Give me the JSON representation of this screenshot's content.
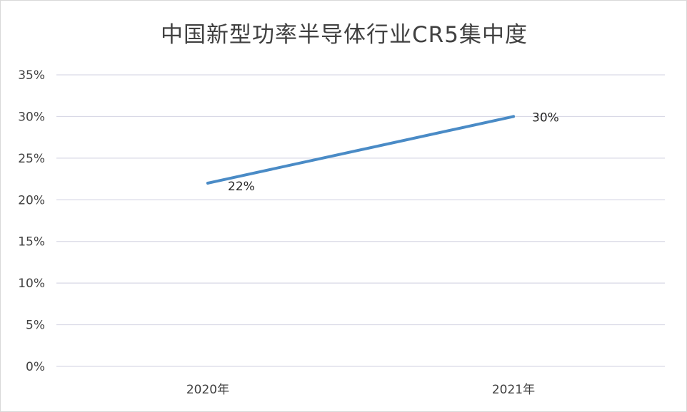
{
  "chart_data": {
    "type": "line",
    "title": "中国新型功率半导体行业CR5集中度",
    "categories": [
      "2020年",
      "2021年"
    ],
    "series": [
      {
        "values": [
          22,
          30
        ],
        "data_labels": [
          "22%",
          "30%"
        ],
        "color": "#4a8bc6"
      }
    ],
    "ylim": [
      0,
      35
    ],
    "y_ticks": [
      0,
      5,
      10,
      15,
      20,
      25,
      30,
      35
    ],
    "y_tick_labels": [
      "0%",
      "5%",
      "10%",
      "15%",
      "20%",
      "25%",
      "30%",
      "35%"
    ],
    "grid": true,
    "gridline_color": "#d9d9e6",
    "legend": "none"
  }
}
